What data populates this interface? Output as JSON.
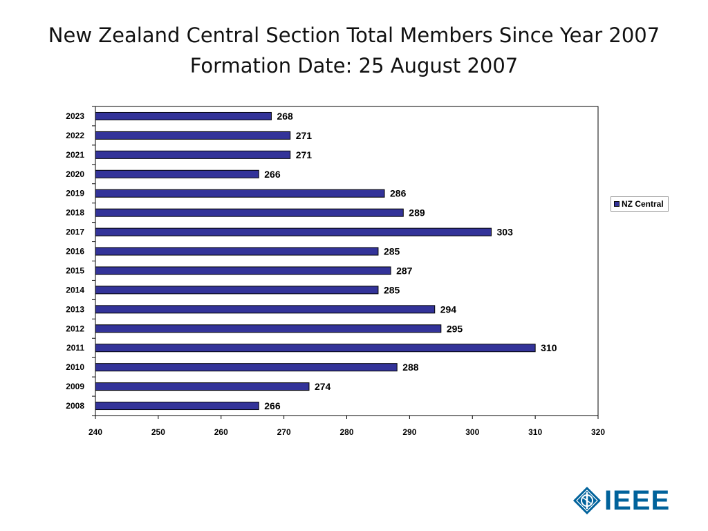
{
  "title_line1": "New Zealand Central Section Total Members Since Year 2007",
  "title_line2": "Formation Date: 25 August 2007",
  "legend": {
    "label": "NZ Central",
    "color": "#333399"
  },
  "logo": {
    "text": "IEEE",
    "icon": "ieee-diamond-icon",
    "color": "#00629b"
  },
  "chart_data": {
    "type": "bar",
    "orientation": "horizontal",
    "categories": [
      "2023",
      "2022",
      "2021",
      "2020",
      "2019",
      "2018",
      "2017",
      "2016",
      "2015",
      "2014",
      "2013",
      "2012",
      "2011",
      "2010",
      "2009",
      "2008"
    ],
    "series": [
      {
        "name": "NZ Central",
        "values": [
          268,
          271,
          271,
          266,
          286,
          289,
          303,
          285,
          287,
          285,
          294,
          295,
          310,
          288,
          274,
          266
        ]
      }
    ],
    "xlim": [
      240,
      320
    ],
    "xticks": [
      240,
      250,
      260,
      270,
      280,
      290,
      300,
      310,
      320
    ],
    "data_labels": true,
    "grid": false,
    "legend_position": "right",
    "bar_color": "#333399"
  }
}
